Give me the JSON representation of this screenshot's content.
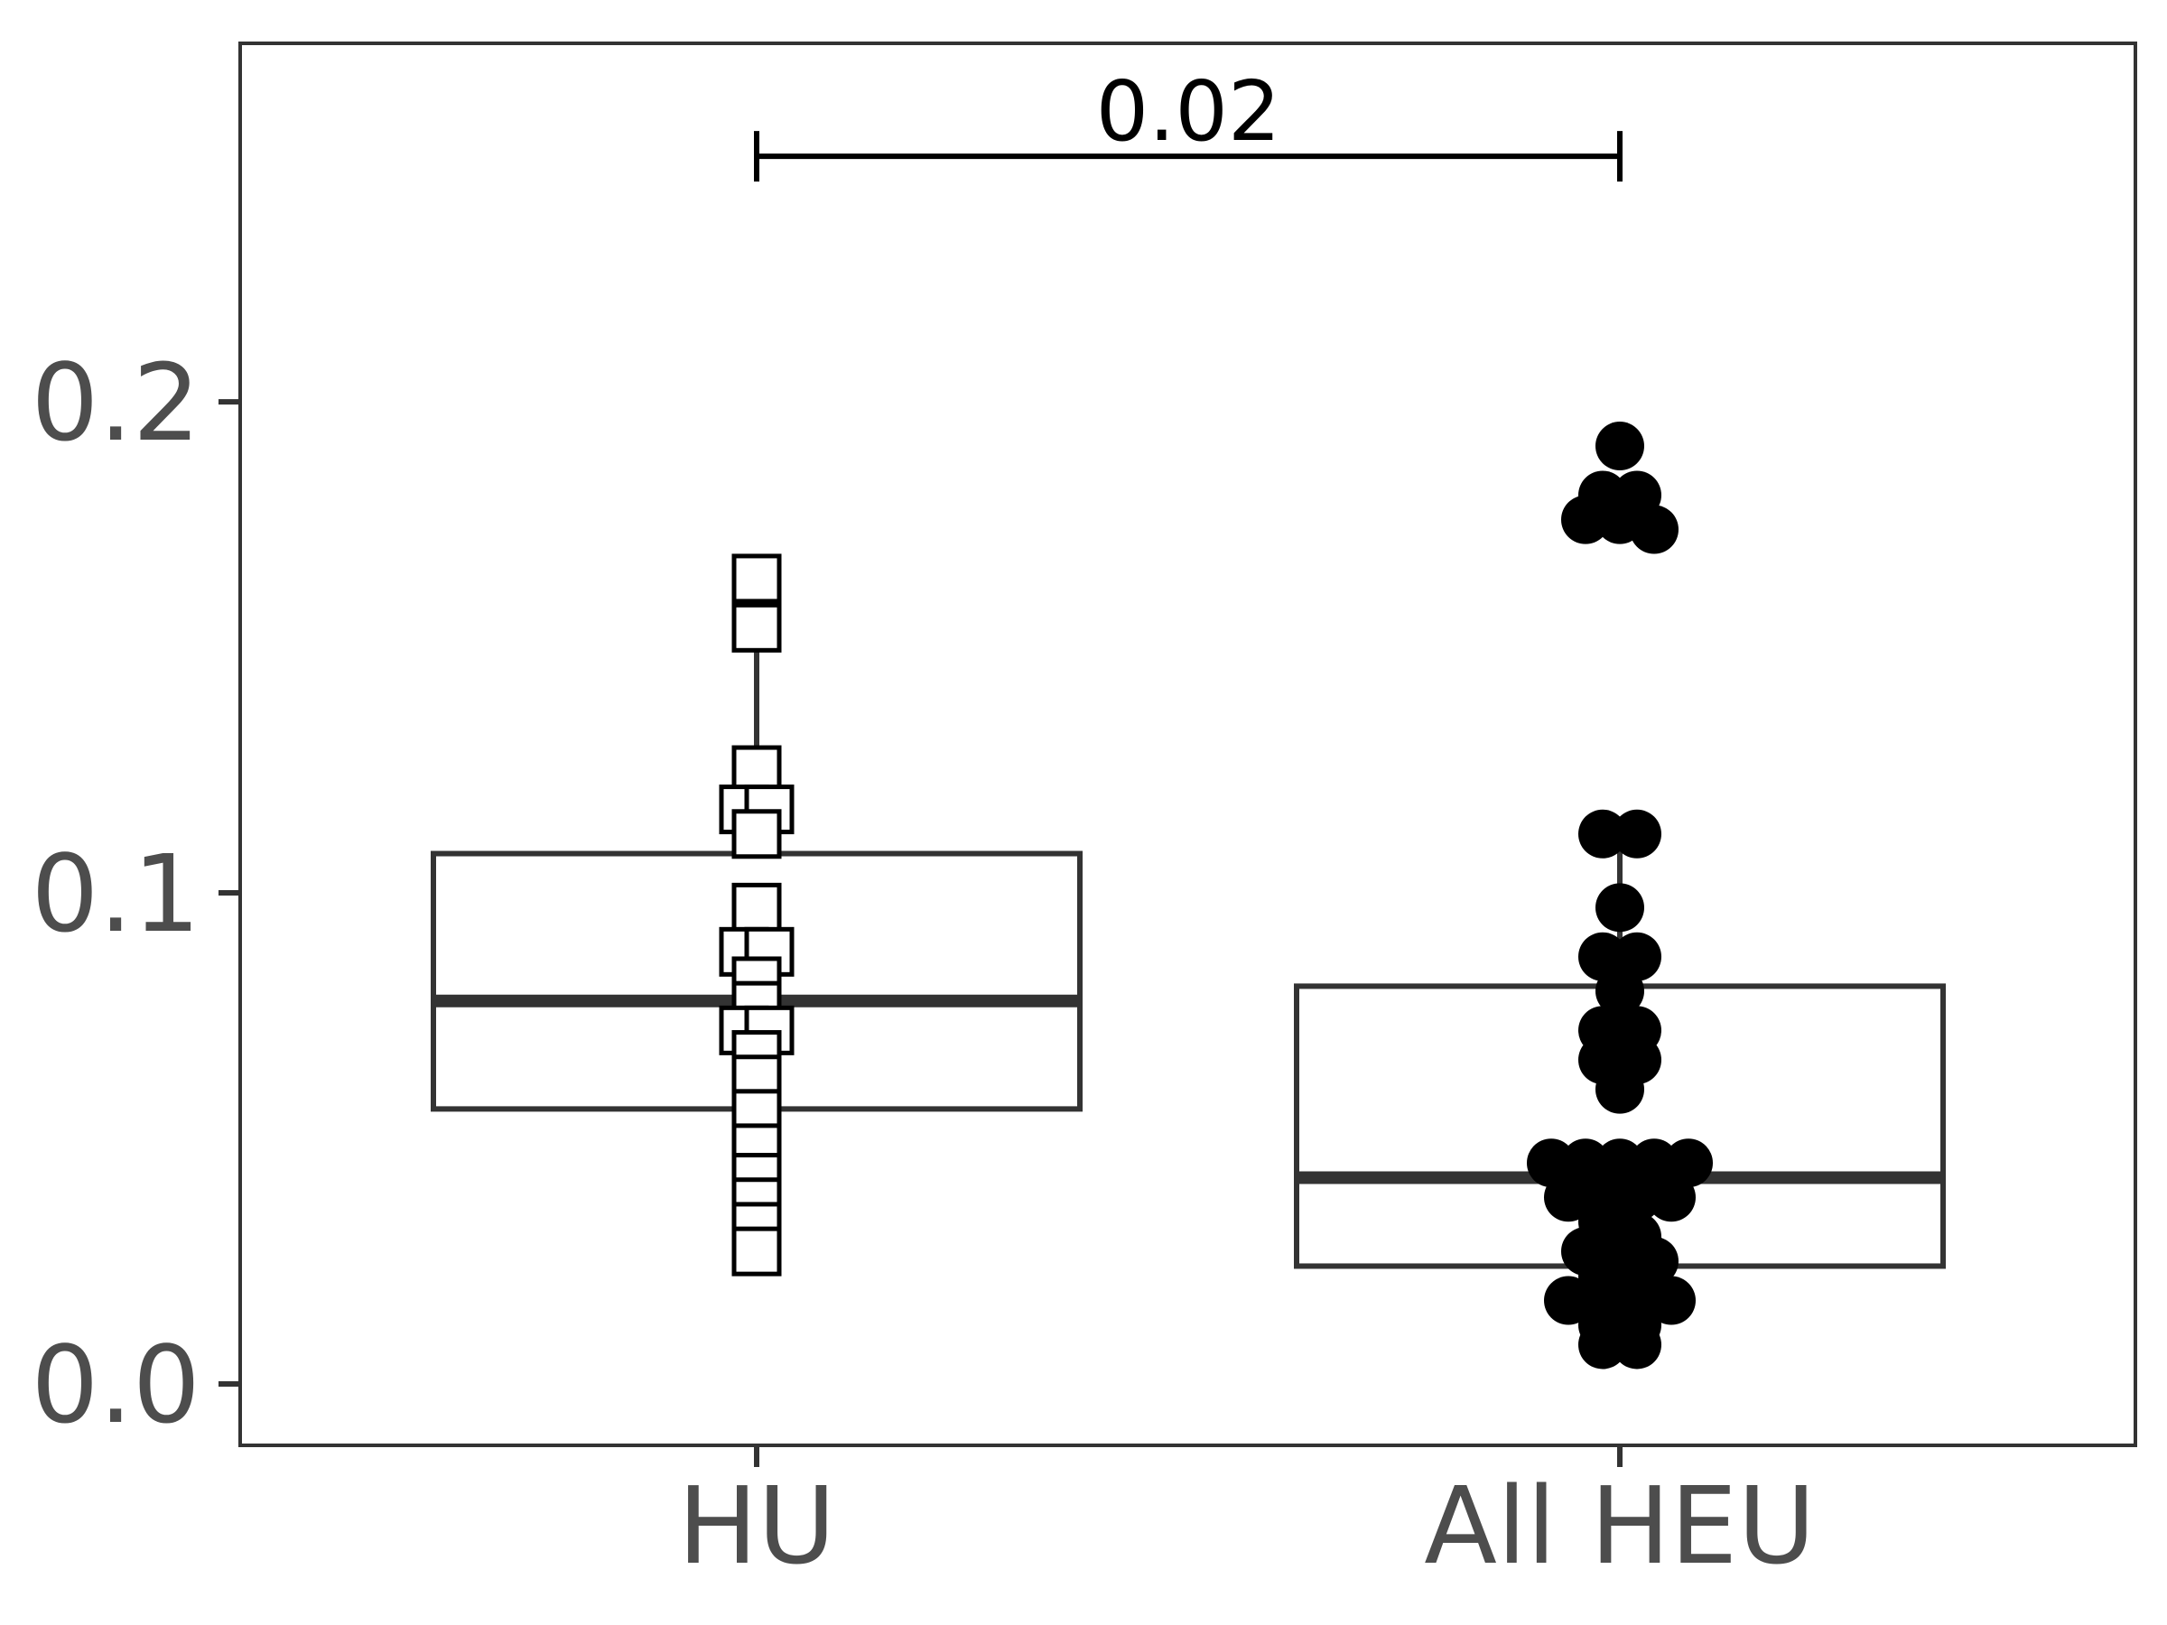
{
  "chart_data": {
    "type": "boxplot",
    "title": "",
    "xlabel": "",
    "ylabel": "",
    "categories": [
      "HU",
      "All HEU"
    ],
    "y_ticks": [
      {
        "value": 0.0,
        "label": "0.0"
      },
      {
        "value": 0.1,
        "label": "0.1"
      },
      {
        "value": 0.2,
        "label": "0.2"
      }
    ],
    "ylim": [
      -0.0125,
      0.273
    ],
    "grid": false,
    "legend": "none",
    "series": [
      {
        "category": "HU",
        "marker": "open-square",
        "box": {
          "q1": 0.056,
          "median": 0.078,
          "q3": 0.108,
          "whisker_low": 0.027,
          "whisker_high": 0.163
        },
        "points": [
          0.164,
          0.154,
          0.125,
          0.117,
          0.117,
          0.112,
          0.097,
          0.088,
          0.088,
          0.082,
          0.077,
          0.072,
          0.072,
          0.067,
          0.062,
          0.055,
          0.048,
          0.042,
          0.037,
          0.032,
          0.027
        ]
      },
      {
        "category": "All HEU",
        "marker": "filled-circle",
        "box": {
          "q1": 0.024,
          "median": 0.042,
          "q3": 0.081,
          "whisker_low": 0.008,
          "whisker_high": 0.112
        },
        "points": [
          0.191,
          0.181,
          0.181,
          0.176,
          0.176,
          0.174,
          0.112,
          0.112,
          0.097,
          0.087,
          0.087,
          0.08,
          0.072,
          0.072,
          0.066,
          0.066,
          0.06,
          0.045,
          0.045,
          0.045,
          0.045,
          0.045,
          0.038,
          0.038,
          0.038,
          0.038,
          0.033,
          0.03,
          0.027,
          0.025,
          0.025,
          0.022,
          0.02,
          0.017,
          0.017,
          0.017,
          0.017,
          0.012,
          0.012,
          0.008,
          0.008
        ]
      }
    ],
    "comparisons": [
      {
        "from": "HU",
        "to": "All HEU",
        "y": 0.25,
        "label": "0.02"
      }
    ],
    "colors": {
      "axis": "#333333",
      "box": "#333333",
      "tick_text": "#4d4d4d",
      "points": "#000000",
      "open_fill": "#ffffff"
    }
  }
}
